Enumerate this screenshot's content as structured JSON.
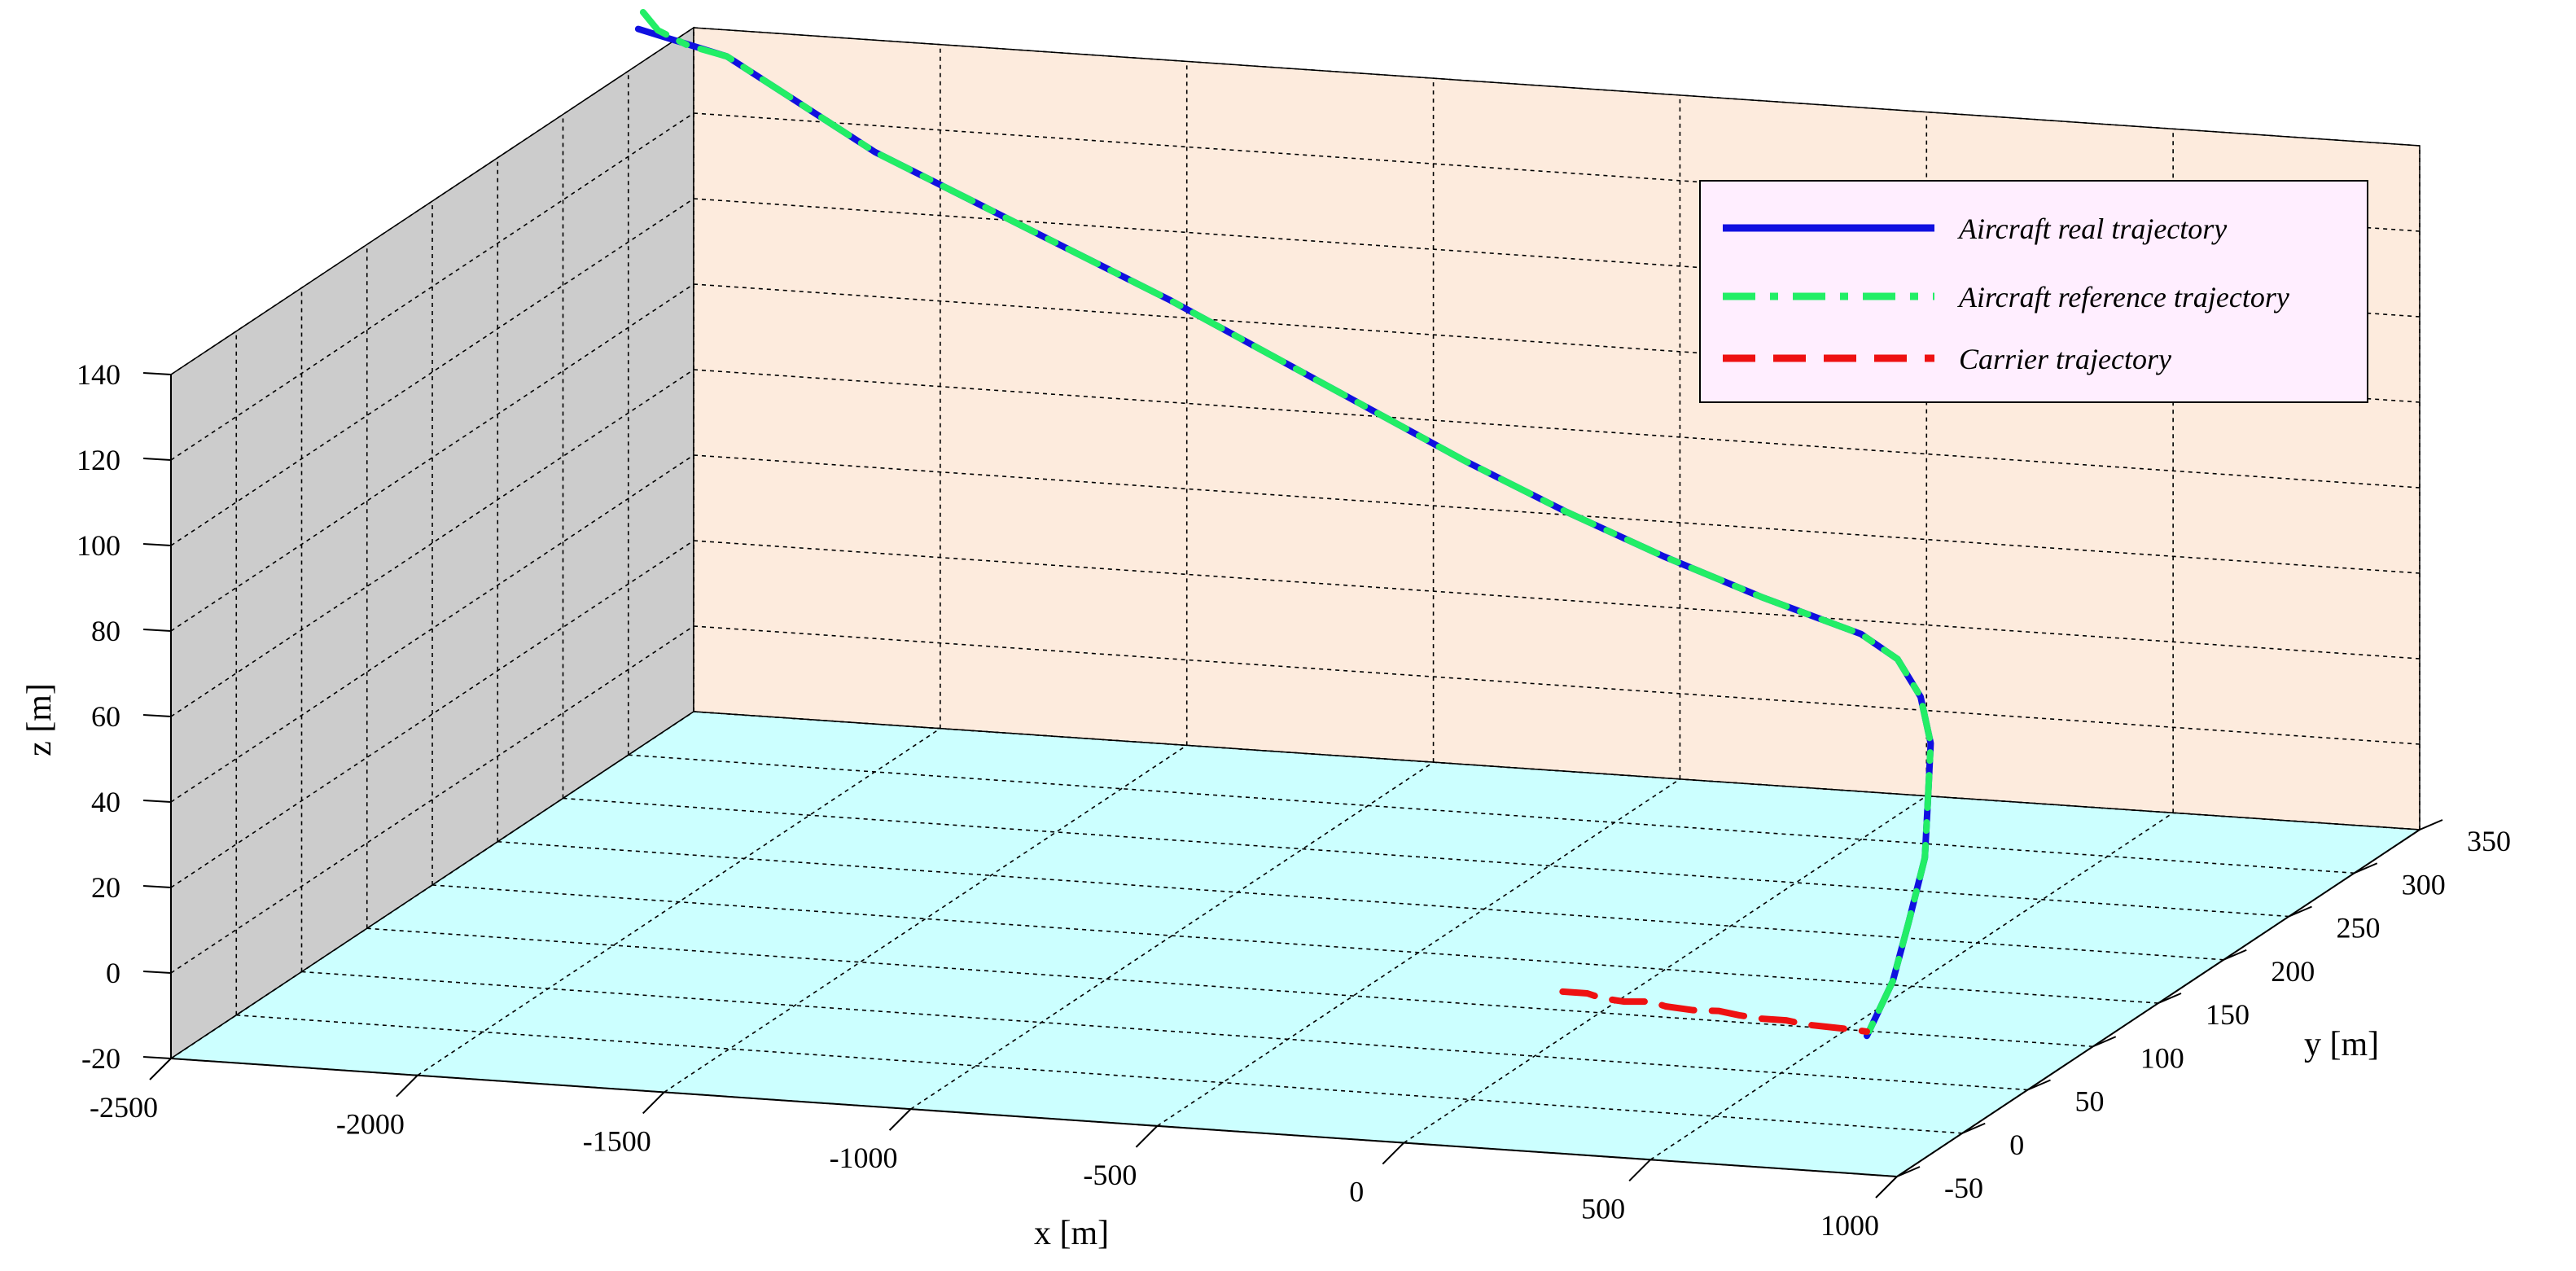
{
  "chart_data": {
    "type": "line",
    "projection": "3d",
    "grid": true,
    "legend_placement": "top-right",
    "xlabel": "x [m]",
    "ylabel": "y [m]",
    "zlabel": "z [m]",
    "xlim": [
      -2500,
      1000
    ],
    "ylim": [
      -50,
      350
    ],
    "zlim": [
      -20,
      140
    ],
    "x_ticks": [
      -2500,
      -2000,
      -1500,
      -1000,
      -500,
      0,
      500,
      1000
    ],
    "y_ticks": [
      -50,
      0,
      50,
      100,
      150,
      200,
      250,
      300,
      350
    ],
    "z_ticks": [
      -20,
      0,
      20,
      40,
      60,
      80,
      100,
      120,
      140
    ],
    "colors": {
      "wall_left": "#cccccc",
      "wall_back": "#fdebdd",
      "floor": "#ccffff",
      "legend_bg": "#ffeeff",
      "real": "#1010e0",
      "reference": "#22ee66",
      "carrier": "#ee1111"
    },
    "series": [
      {
        "name": "Aircraft real trajectory",
        "style": "solid",
        "points": [
          [
            -2480,
            300,
            150
          ],
          [
            -2300,
            300,
            145
          ],
          [
            -2150,
            300,
            135
          ],
          [
            -2000,
            300,
            125
          ],
          [
            -1800,
            300,
            115
          ],
          [
            -1600,
            300,
            105
          ],
          [
            -1400,
            300,
            95
          ],
          [
            -1200,
            300,
            84
          ],
          [
            -1000,
            300,
            73
          ],
          [
            -800,
            300,
            62
          ],
          [
            -600,
            300,
            52
          ],
          [
            -400,
            300,
            43
          ],
          [
            -200,
            300,
            35
          ],
          [
            0,
            300,
            28
          ],
          [
            100,
            290,
            25
          ],
          [
            200,
            270,
            21
          ],
          [
            300,
            240,
            17
          ],
          [
            400,
            200,
            12
          ],
          [
            500,
            160,
            8
          ],
          [
            600,
            110,
            4
          ],
          [
            700,
            60,
            1
          ],
          [
            780,
            10,
            -1
          ]
        ]
      },
      {
        "name": "Aircraft reference trajectory",
        "style": "dash-dot",
        "points": [
          [
            -2470,
            300,
            154
          ],
          [
            -2440,
            300,
            150
          ],
          [
            -2380,
            300,
            147
          ],
          [
            -2300,
            300,
            145
          ],
          [
            -2150,
            300,
            135
          ],
          [
            -2000,
            300,
            125
          ],
          [
            -1800,
            300,
            115
          ],
          [
            -1600,
            300,
            105
          ],
          [
            -1400,
            300,
            95
          ],
          [
            -1200,
            300,
            84
          ],
          [
            -1000,
            300,
            73
          ],
          [
            -800,
            300,
            62
          ],
          [
            -600,
            300,
            52
          ],
          [
            -400,
            300,
            43
          ],
          [
            -200,
            300,
            35
          ],
          [
            0,
            300,
            28
          ],
          [
            100,
            290,
            25
          ],
          [
            200,
            270,
            21
          ],
          [
            300,
            240,
            17
          ],
          [
            400,
            200,
            12
          ],
          [
            500,
            160,
            8
          ],
          [
            600,
            110,
            4
          ],
          [
            700,
            60,
            1
          ],
          [
            780,
            10,
            -1
          ]
        ]
      },
      {
        "name": "Carrier trajectory",
        "style": "dashed",
        "points": [
          [
            110,
            30,
            0
          ],
          [
            160,
            30,
            0
          ],
          [
            200,
            26,
            0
          ],
          [
            250,
            24,
            0
          ],
          [
            300,
            26,
            0
          ],
          [
            340,
            22,
            0
          ],
          [
            400,
            20,
            0
          ],
          [
            450,
            21,
            0
          ],
          [
            500,
            18,
            0
          ],
          [
            550,
            16,
            0
          ],
          [
            600,
            16,
            0
          ],
          [
            650,
            13,
            0
          ],
          [
            700,
            12,
            0
          ],
          [
            750,
            11,
            0
          ],
          [
            780,
            10,
            0
          ]
        ]
      }
    ]
  }
}
